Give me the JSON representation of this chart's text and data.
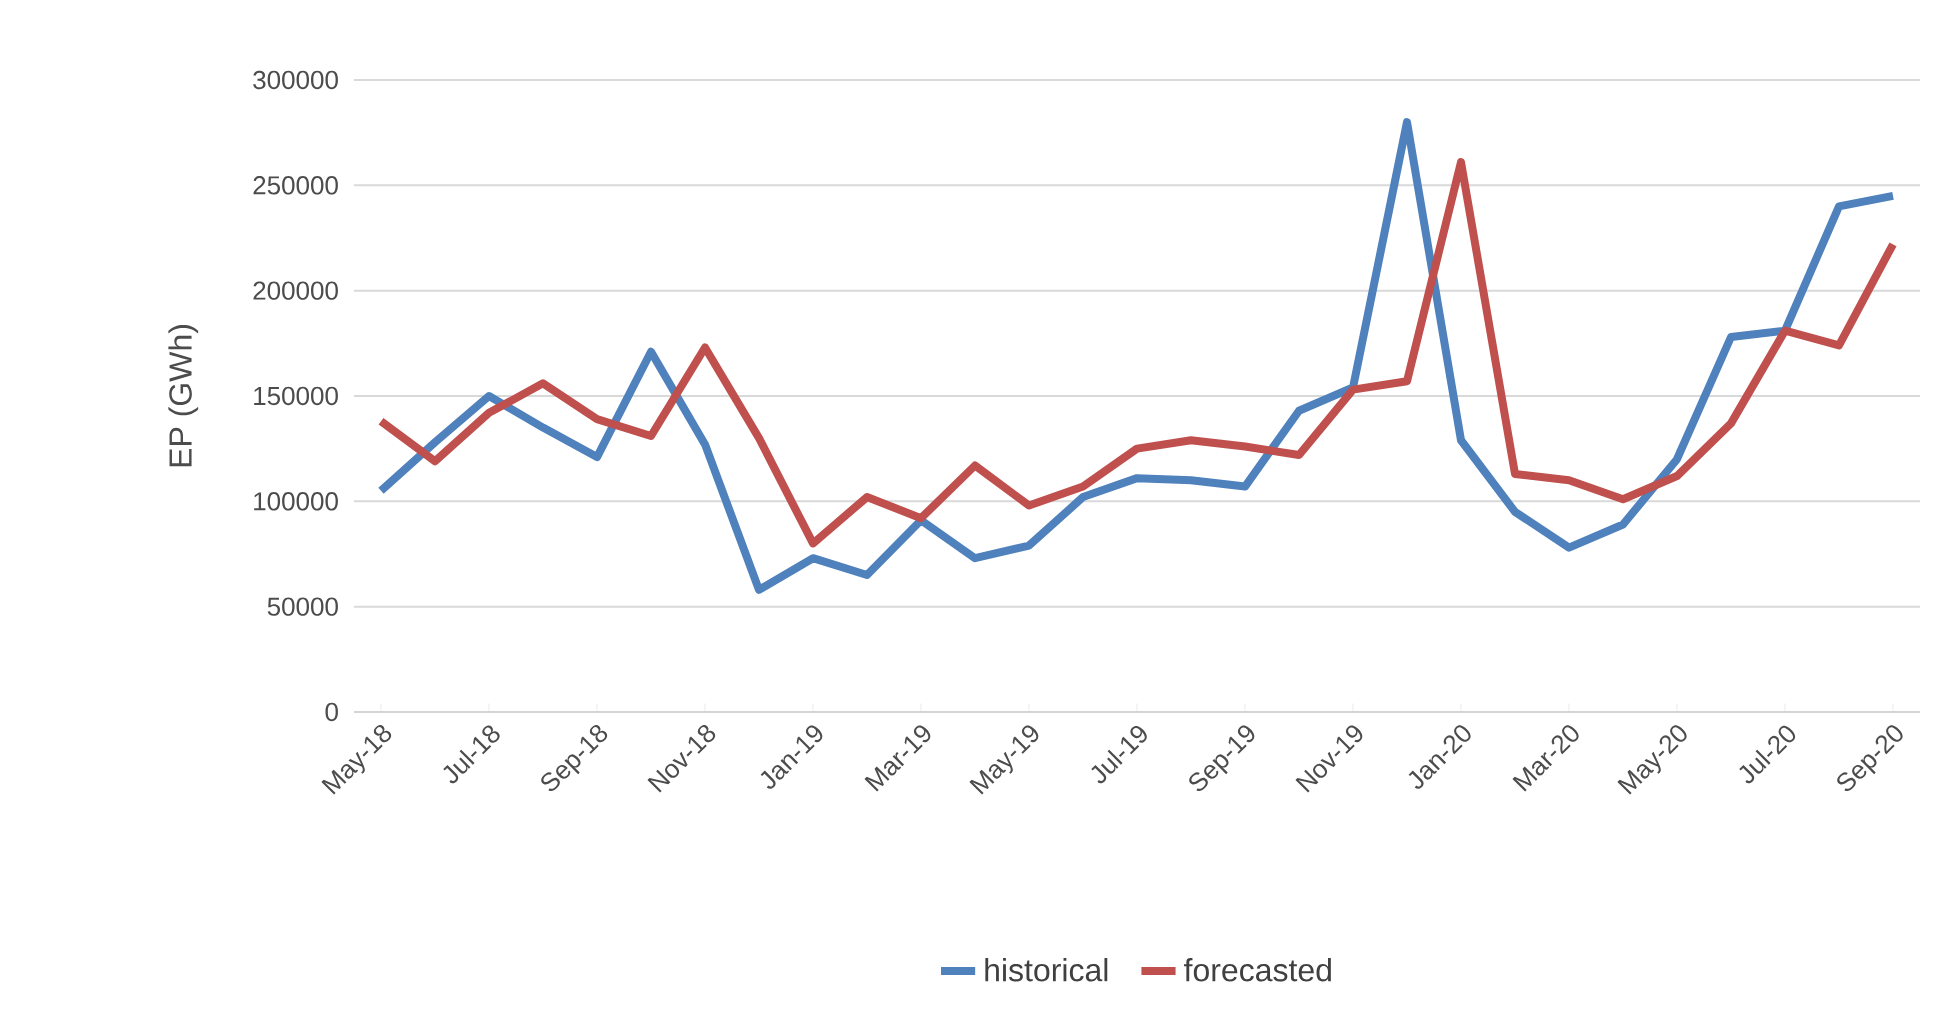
{
  "chart_data": {
    "type": "line",
    "ylabel": "EP (GWh)",
    "categories": [
      "May-18",
      null,
      "Jul-18",
      null,
      "Sep-18",
      null,
      "Nov-18",
      null,
      "Jan-19",
      null,
      "Mar-19",
      null,
      "May-19",
      null,
      "Jul-19",
      null,
      "Sep-19",
      null,
      "Nov-19",
      null,
      "Jan-20",
      null,
      "Mar-20",
      null,
      "May-20",
      null,
      "Jul-20",
      null,
      "Sep-20"
    ],
    "series": [
      {
        "name": "historical",
        "color": "#4f81bd",
        "values": [
          105000,
          128000,
          150000,
          135000,
          121000,
          171000,
          127000,
          58000,
          73000,
          65000,
          91000,
          73000,
          79000,
          102000,
          111000,
          110000,
          107000,
          143000,
          154000,
          280000,
          129000,
          95000,
          78000,
          89000,
          120000,
          178000,
          181000,
          240000,
          245000
        ]
      },
      {
        "name": "forecasted",
        "color": "#c0504d",
        "values": [
          138000,
          119000,
          142000,
          156000,
          139000,
          131000,
          173000,
          130000,
          80000,
          102000,
          92000,
          117000,
          98000,
          107000,
          125000,
          129000,
          126000,
          122000,
          153000,
          157000,
          261000,
          113000,
          110000,
          101000,
          112000,
          137000,
          181000,
          174000,
          222000
        ]
      }
    ],
    "ylim": [
      0,
      300000
    ],
    "yticks": [
      0,
      50000,
      100000,
      150000,
      200000,
      250000,
      300000
    ],
    "grid": "y",
    "legend": "bottom",
    "marker": "none",
    "line_style": "solid"
  }
}
